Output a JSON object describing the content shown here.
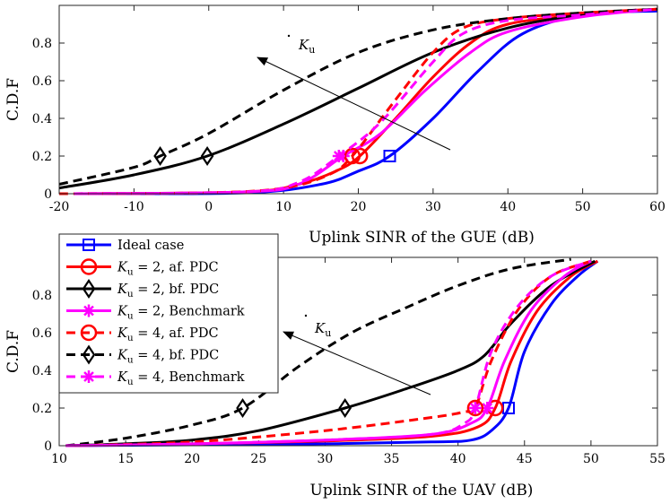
{
  "chart_data": [
    {
      "type": "line",
      "id": "gue",
      "xlabel": "Uplink SINR of the GUE (dB)",
      "ylabel": "C.D.F",
      "xlim": [
        -20,
        60
      ],
      "ylim": [
        0,
        1
      ],
      "xticks": [
        -20,
        -10,
        0,
        10,
        20,
        30,
        40,
        50,
        60
      ],
      "yticks": [
        0,
        0.2,
        0.4,
        0.6,
        0.8
      ],
      "annotation": "K_u",
      "series": [
        {
          "name": "Ideal case",
          "color": "#0000ff",
          "dash": "solid",
          "marker": "square",
          "marker_at": [
            24.2,
            0.2
          ],
          "x": [
            -18,
            5,
            15,
            20,
            24.2,
            30,
            36,
            42,
            50,
            60
          ],
          "y": [
            0,
            0.005,
            0.05,
            0.12,
            0.2,
            0.4,
            0.65,
            0.85,
            0.95,
            0.97
          ]
        },
        {
          "name": "K_u = 2, af. PDC",
          "color": "#ff0000",
          "dash": "solid",
          "marker": "circle",
          "marker_at": [
            20.2,
            0.2
          ],
          "x": [
            -18,
            5,
            12,
            17,
            20.2,
            25,
            30,
            35,
            40,
            50,
            60
          ],
          "y": [
            0,
            0.01,
            0.05,
            0.12,
            0.2,
            0.4,
            0.62,
            0.8,
            0.9,
            0.95,
            0.98
          ]
        },
        {
          "name": "K_u = 2, bf. PDC",
          "color": "#000000",
          "dash": "solid",
          "marker": "diamond",
          "marker_at": [
            -0.2,
            0.2
          ],
          "x": [
            -20,
            -10,
            -0.2,
            10,
            20,
            30,
            40,
            50,
            60
          ],
          "y": [
            0.03,
            0.1,
            0.2,
            0.37,
            0.56,
            0.75,
            0.88,
            0.95,
            0.98
          ]
        },
        {
          "name": "K_u = 2, Benchmark",
          "color": "#ff00ff",
          "dash": "solid",
          "marker": "star",
          "marker_at": [
            18,
            0.2
          ],
          "x": [
            -18,
            5,
            12,
            18,
            23,
            29,
            35,
            40,
            50,
            60
          ],
          "y": [
            0,
            0.01,
            0.05,
            0.2,
            0.32,
            0.55,
            0.75,
            0.86,
            0.94,
            0.98
          ]
        },
        {
          "name": "K_u = 4, af. PDC",
          "color": "#ff0000",
          "dash": "dash",
          "marker": "circle",
          "marker_at": [
            19.2,
            0.2
          ],
          "x": [
            -20,
            0,
            10,
            16,
            19.2,
            25,
            30,
            34,
            40,
            50,
            60
          ],
          "y": [
            0,
            0.005,
            0.03,
            0.1,
            0.2,
            0.5,
            0.75,
            0.88,
            0.93,
            0.96,
            0.98
          ]
        },
        {
          "name": "K_u = 4, bf. PDC",
          "color": "#000000",
          "dash": "dash",
          "marker": "diamond",
          "marker_at": [
            -6.5,
            0.2
          ],
          "x": [
            -20,
            -10,
            -6.5,
            0,
            10,
            20,
            30,
            40,
            50,
            60
          ],
          "y": [
            0.05,
            0.14,
            0.2,
            0.32,
            0.55,
            0.75,
            0.87,
            0.93,
            0.96,
            0.98
          ]
        },
        {
          "name": "K_u = 4, Benchmark",
          "color": "#ff00ff",
          "dash": "dash",
          "marker": "star",
          "marker_at": [
            17.4,
            0.2
          ],
          "x": [
            -18,
            5,
            12,
            17.4,
            23,
            30,
            34,
            40,
            50,
            60
          ],
          "y": [
            0,
            0.01,
            0.06,
            0.2,
            0.38,
            0.7,
            0.85,
            0.92,
            0.95,
            0.98
          ]
        }
      ]
    },
    {
      "type": "line",
      "id": "uav",
      "xlabel": "Uplink SINR of the UAV (dB)",
      "ylabel": "C.D.F",
      "xlim": [
        10,
        55
      ],
      "ylim": [
        0,
        1
      ],
      "xticks": [
        10,
        15,
        20,
        25,
        30,
        35,
        40,
        45,
        50,
        55
      ],
      "yticks": [
        0,
        0.2,
        0.4,
        0.6,
        0.8
      ],
      "annotation": "K_u",
      "series": [
        {
          "name": "Ideal case",
          "color": "#0000ff",
          "dash": "solid",
          "marker": "square",
          "marker_at": [
            43.8,
            0.2
          ],
          "x": [
            10.5,
            20,
            30,
            38,
            41,
            42.5,
            43.8,
            45,
            47,
            49,
            50.5
          ],
          "y": [
            0,
            0.005,
            0.01,
            0.02,
            0.03,
            0.08,
            0.2,
            0.5,
            0.75,
            0.9,
            0.98
          ]
        },
        {
          "name": "K_u = 2, af. PDC",
          "color": "#ff0000",
          "dash": "solid",
          "marker": "circle",
          "marker_at": [
            42.8,
            0.2
          ],
          "x": [
            10.5,
            20,
            30,
            38,
            41.5,
            42.8,
            44,
            46,
            48.5,
            50.5
          ],
          "y": [
            0,
            0.01,
            0.025,
            0.05,
            0.1,
            0.2,
            0.45,
            0.72,
            0.9,
            0.98
          ]
        },
        {
          "name": "K_u = 2, bf. PDC",
          "color": "#000000",
          "dash": "solid",
          "marker": "diamond",
          "marker_at": [
            31.5,
            0.2
          ],
          "x": [
            10.5,
            15,
            20,
            25,
            31.5,
            36,
            40,
            42,
            44,
            47,
            50.3
          ],
          "y": [
            0,
            0.01,
            0.03,
            0.08,
            0.2,
            0.3,
            0.4,
            0.48,
            0.65,
            0.85,
            0.98
          ]
        },
        {
          "name": "K_u = 2, Benchmark",
          "color": "#ff00ff",
          "dash": "solid",
          "marker": "star",
          "marker_at": [
            42.2,
            0.2
          ],
          "x": [
            10.5,
            20,
            30,
            38,
            41,
            42.2,
            43.5,
            45.5,
            48,
            50
          ],
          "y": [
            0,
            0.01,
            0.03,
            0.06,
            0.12,
            0.2,
            0.45,
            0.72,
            0.9,
            0.98
          ]
        },
        {
          "name": "K_u = 4, af. PDC",
          "color": "#ff0000",
          "dash": "dash",
          "marker": "circle",
          "marker_at": [
            41.3,
            0.2
          ],
          "x": [
            10.5,
            20,
            30,
            38,
            40.5,
            41.3,
            42.5,
            44.5,
            47,
            50
          ],
          "y": [
            0,
            0.02,
            0.08,
            0.15,
            0.18,
            0.2,
            0.45,
            0.72,
            0.9,
            0.98
          ]
        },
        {
          "name": "K_u = 4, bf. PDC",
          "color": "#000000",
          "dash": "dash",
          "marker": "diamond",
          "marker_at": [
            23.8,
            0.2
          ],
          "x": [
            10.5,
            15,
            20,
            23.8,
            28,
            32,
            36,
            40,
            44,
            48.5
          ],
          "y": [
            0,
            0.04,
            0.11,
            0.2,
            0.42,
            0.6,
            0.73,
            0.85,
            0.94,
            0.99
          ]
        },
        {
          "name": "K_u = 4, Benchmark",
          "color": "#ff00ff",
          "dash": "dash",
          "marker": "star",
          "marker_at": [
            41.3,
            0.2
          ],
          "x": [
            10.5,
            20,
            30,
            38,
            40.5,
            41.3,
            42.5,
            44.5,
            47,
            50
          ],
          "y": [
            0,
            0.01,
            0.03,
            0.06,
            0.12,
            0.2,
            0.5,
            0.74,
            0.9,
            0.98
          ]
        }
      ]
    }
  ]
}
